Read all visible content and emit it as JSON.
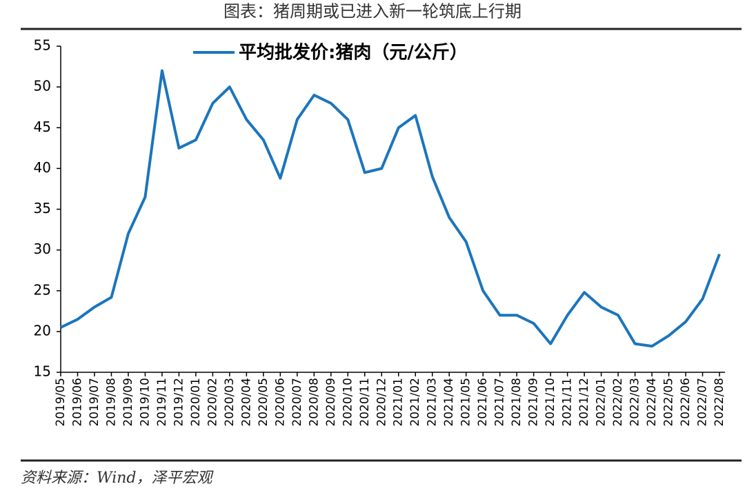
{
  "chart_data": {
    "type": "line",
    "title": "图表：猪周期或已进入新一轮筑底上行期",
    "source": "资料来源：Wind，泽平宏观",
    "categories": [
      "2019/05",
      "2019/06",
      "2019/07",
      "2019/08",
      "2019/09",
      "2019/10",
      "2019/11",
      "2019/12",
      "2020/01",
      "2020/02",
      "2020/03",
      "2020/04",
      "2020/05",
      "2020/06",
      "2020/07",
      "2020/08",
      "2020/09",
      "2020/10",
      "2020/11",
      "2020/12",
      "2021/01",
      "2021/02",
      "2021/03",
      "2021/04",
      "2021/05",
      "2021/06",
      "2021/07",
      "2021/08",
      "2021/09",
      "2021/10",
      "2021/11",
      "2021/12",
      "2022/01",
      "2022/02",
      "2022/03",
      "2022/04",
      "2022/05",
      "2022/06",
      "2022/07",
      "2022/08"
    ],
    "series": [
      {
        "name": "平均批发价:猪肉（元/公斤）",
        "color": "#1b75bc",
        "values": [
          20.5,
          21.5,
          23,
          24.2,
          32,
          36.5,
          52,
          42.5,
          43.5,
          48,
          50,
          46,
          43.5,
          38.8,
          46,
          49,
          48,
          46,
          39.5,
          40,
          45,
          46.5,
          39,
          34,
          31,
          25,
          22,
          22,
          21,
          18.5,
          22,
          24.8,
          23,
          22,
          18.5,
          18.2,
          19.5,
          21.2,
          24,
          29.5
        ]
      }
    ],
    "ylim": [
      15,
      55
    ],
    "yticks": [
      15,
      20,
      25,
      30,
      35,
      40,
      45,
      50,
      55
    ],
    "legend": "top"
  }
}
